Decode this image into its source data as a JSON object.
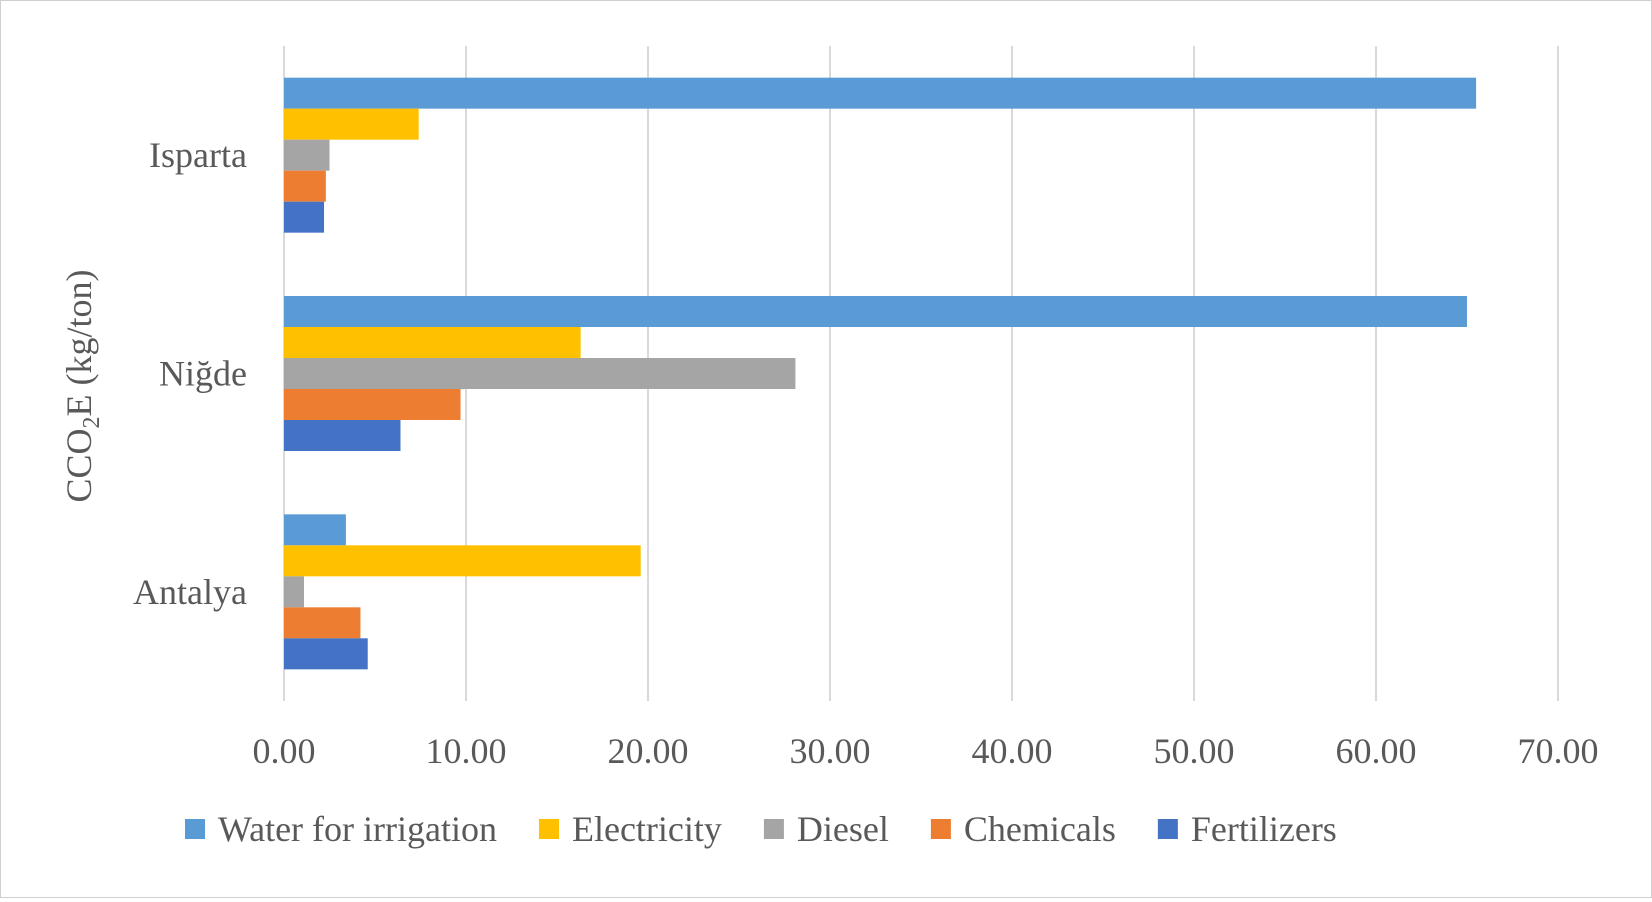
{
  "chart_data": {
    "type": "bar",
    "orientation": "horizontal",
    "title": "",
    "ylabel_main": "CCO",
    "ylabel_sub": "2",
    "ylabel_rest": "E (kg/ton)",
    "xlabel": "",
    "categories": [
      "Isparta",
      "Niğde",
      "Antalya"
    ],
    "xlim": [
      0,
      70
    ],
    "xticks": [
      "0.00",
      "10.00",
      "20.00",
      "30.00",
      "40.00",
      "50.00",
      "60.00",
      "70.00"
    ],
    "grid": true,
    "legend_position": "bottom",
    "series": [
      {
        "name": "Water for irrigation",
        "color": "#5B9BD5",
        "values": [
          65.5,
          65.0,
          3.4
        ]
      },
      {
        "name": "Electricity",
        "color": "#FFC000",
        "values": [
          7.4,
          16.3,
          19.6
        ]
      },
      {
        "name": "Diesel",
        "color": "#A5A5A5",
        "values": [
          2.5,
          28.1,
          1.1
        ]
      },
      {
        "name": "Chemicals",
        "color": "#ED7D31",
        "values": [
          2.3,
          9.7,
          4.2
        ]
      },
      {
        "name": "Fertilizers",
        "color": "#4472C4",
        "values": [
          2.2,
          6.4,
          4.6
        ]
      }
    ]
  }
}
